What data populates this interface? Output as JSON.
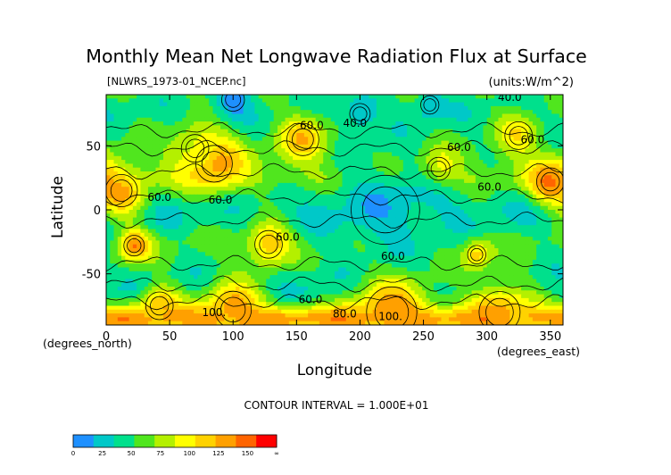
{
  "chart_data": {
    "type": "heatmap",
    "title": "Monthly Mean Net Longwave Radiation Flux at Surface",
    "subtitle_left": "[NLWRS_1973-01_NCEP.nc]",
    "subtitle_right": "(units:W/m^2)",
    "xlabel": "Longitude",
    "ylabel": "Latitude",
    "x_unit_label": "(degrees_east)",
    "y_unit_label": "(degrees_north)",
    "xlim": [
      0,
      360
    ],
    "ylim": [
      -90,
      90
    ],
    "x_ticks": [
      0,
      50,
      100,
      150,
      200,
      250,
      300,
      350
    ],
    "y_ticks": [
      -50,
      0,
      50
    ],
    "contour_interval_text": "CONTOUR INTERVAL = 1.000E+01",
    "contour_labels": [
      {
        "text": "40.0",
        "lon": 318,
        "lat": 85
      },
      {
        "text": "60.0",
        "lon": 162,
        "lat": 63
      },
      {
        "text": "40.0",
        "lon": 196,
        "lat": 65
      },
      {
        "text": "60.0",
        "lon": 278,
        "lat": 46
      },
      {
        "text": "60.0",
        "lon": 336,
        "lat": 52
      },
      {
        "text": "60.0",
        "lon": 302,
        "lat": 15
      },
      {
        "text": "60.0",
        "lon": 42,
        "lat": 7
      },
      {
        "text": "60.0",
        "lon": 90,
        "lat": 5
      },
      {
        "text": "60.0",
        "lon": 143,
        "lat": -24
      },
      {
        "text": "60.0",
        "lon": 226,
        "lat": -39
      },
      {
        "text": "60.0",
        "lon": 161,
        "lat": -73
      },
      {
        "text": "80.0",
        "lon": 188,
        "lat": -84
      },
      {
        "text": "100.",
        "lon": 224,
        "lat": -86
      },
      {
        "text": "100.",
        "lon": 85,
        "lat": -83
      }
    ],
    "colorbar": {
      "ticks": [
        "0",
        "25",
        "50",
        "75",
        "100",
        "125",
        "150",
        "∞"
      ],
      "colors": [
        "#1e90ff",
        "#00c8c8",
        "#00e08c",
        "#50e61e",
        "#b4f000",
        "#ffff00",
        "#ffd200",
        "#ffa000",
        "#ff6400",
        "#ff0000"
      ]
    },
    "zones": [
      {
        "lat": -90,
        "value": 95
      },
      {
        "lat": -84,
        "value": 108
      },
      {
        "lat": -78,
        "value": 82
      },
      {
        "lat": -72,
        "value": 52
      },
      {
        "lat": -62,
        "value": 38
      },
      {
        "lat": -50,
        "value": 42
      },
      {
        "lat": -38,
        "value": 50
      },
      {
        "lat": -24,
        "value": 52
      },
      {
        "lat": -12,
        "value": 42
      },
      {
        "lat": 0,
        "value": 38
      },
      {
        "lat": 12,
        "value": 45
      },
      {
        "lat": 24,
        "value": 62
      },
      {
        "lat": 36,
        "value": 58
      },
      {
        "lat": 50,
        "value": 52
      },
      {
        "lat": 62,
        "value": 48
      },
      {
        "lat": 74,
        "value": 44
      },
      {
        "lat": 84,
        "value": 46
      },
      {
        "lat": 90,
        "value": 50
      }
    ],
    "hotspots": [
      {
        "lon": 12,
        "lat": 15,
        "value": 100,
        "radius": 14
      },
      {
        "lon": 85,
        "lat": 36,
        "value": 108,
        "radius": 16
      },
      {
        "lon": 70,
        "lat": 48,
        "value": 85,
        "radius": 12
      },
      {
        "lon": 155,
        "lat": 55,
        "value": 95,
        "radius": 14
      },
      {
        "lon": 262,
        "lat": 32,
        "value": 90,
        "radius": 10
      },
      {
        "lon": 350,
        "lat": 22,
        "value": 110,
        "radius": 12
      },
      {
        "lon": 325,
        "lat": 58,
        "value": 85,
        "radius": 12
      },
      {
        "lon": 22,
        "lat": -28,
        "value": 110,
        "radius": 9
      },
      {
        "lon": 128,
        "lat": -27,
        "value": 100,
        "radius": 12
      },
      {
        "lon": 292,
        "lat": -35,
        "value": 95,
        "radius": 8
      },
      {
        "lon": 42,
        "lat": -75,
        "value": 100,
        "radius": 12
      },
      {
        "lon": 100,
        "lat": -78,
        "value": 110,
        "radius": 16
      },
      {
        "lon": 225,
        "lat": -80,
        "value": 112,
        "radius": 22
      },
      {
        "lon": 310,
        "lat": -80,
        "value": 102,
        "radius": 18
      },
      {
        "lon": 200,
        "lat": 75,
        "value": 20,
        "radius": 9
      },
      {
        "lon": 100,
        "lat": 86,
        "value": 15,
        "radius": 10
      },
      {
        "lon": 255,
        "lat": 82,
        "value": 22,
        "radius": 8
      },
      {
        "lon": 220,
        "lat": 0,
        "value": 30,
        "radius": 30
      }
    ]
  }
}
